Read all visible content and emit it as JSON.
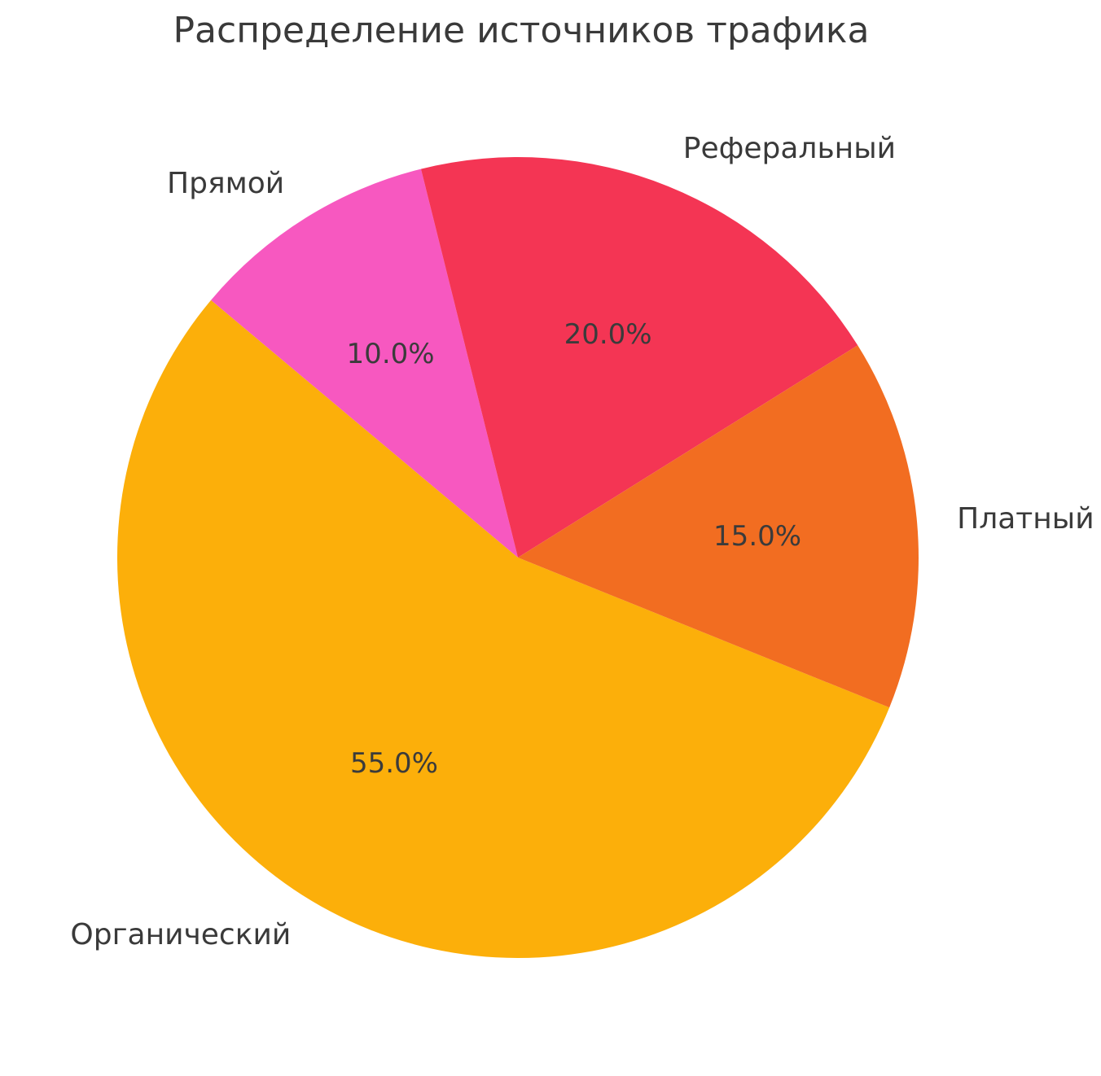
{
  "page": {
    "background_color": "#ffffff",
    "text_color": "#3a3a3a"
  },
  "chart_data": {
    "type": "pie",
    "title": "Распределение источников трафика",
    "slices": [
      {
        "label": "Органический",
        "value": 55,
        "pct_label": "55.0%",
        "color": "#FCAF0A"
      },
      {
        "label": "Прямой",
        "value": 10,
        "pct_label": "10.0%",
        "color": "#F758C0"
      },
      {
        "label": "Реферальный",
        "value": 20,
        "pct_label": "20.0%",
        "color": "#F43554"
      },
      {
        "label": "Платный",
        "value": 15,
        "pct_label": "15.0%",
        "color": "#F26D21"
      }
    ],
    "start_angle": 338,
    "direction": "clockwise",
    "label_distance": 1.1,
    "pct_distance": 0.6,
    "legend": "none",
    "title_color": "#3a3a3a",
    "label_color": "#3a3a3a",
    "pct_color": "#3b3b3b"
  }
}
